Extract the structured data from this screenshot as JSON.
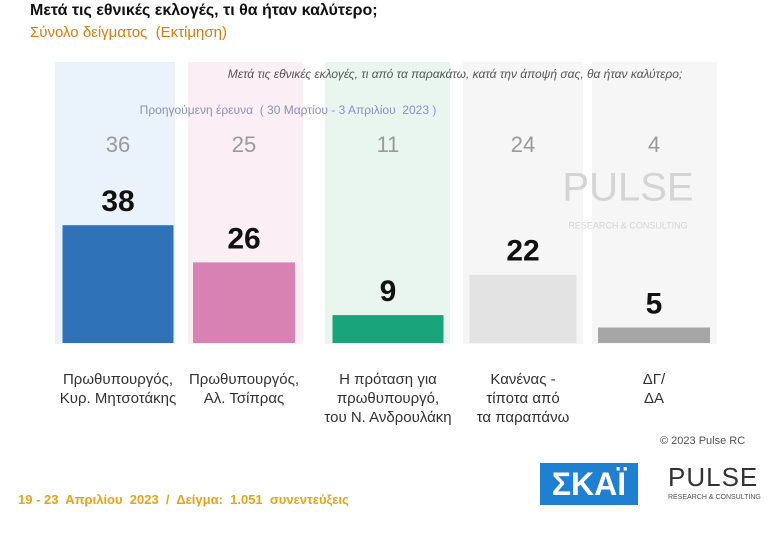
{
  "chart_data": {
    "type": "bar",
    "title": "Μετά τις εθνικές εκλογές, τι θα ήταν καλύτερο;",
    "subtitle": "Σύνολο δείγματος  (Εκτίμηση)",
    "question": "Μετά τις εθνικές εκλογές, τι από τα παρακάτω, κατά την άποψή σας, θα ήταν καλύτερο;",
    "categories": [
      "Πρωθυπουργός,\nΚυρ. Μητσοτάκης",
      "Πρωθυπουργός,\nΑλ. Τσίπρας",
      "Η πρόταση για\nπρωθυπουργό,\nτου Ν. Ανδρουλάκη",
      "Κανένας -\nτίποτα από\nτα παραπάνω",
      "ΔΓ/\nΔΑ"
    ],
    "values": [
      38,
      26,
      9,
      22,
      5
    ],
    "colors": [
      "#2f72b8",
      "#d882b4",
      "#19a57a",
      "#e3e3e3",
      "#a6a6a6"
    ],
    "previous": {
      "label": "Προηγούμενη έρευνα  ( 30 Μαρτίου - 3 Απριλίου  2023 )",
      "values": [
        36,
        25,
        11,
        24,
        4
      ]
    }
  },
  "watermark": {
    "name": "PULSE",
    "tagline": "RESEARCH & CONSULTING"
  },
  "copyright": "© 2023 Pulse RC",
  "footer": "19 - 23  Απριλίου  2023  /  Δείγμα:  1.051  συνεντεύξεις",
  "logos": {
    "skai": "ΣΚΑΪ",
    "pulse": "PULSE",
    "pulse_tagline": "RESEARCH & CONSULTING"
  }
}
